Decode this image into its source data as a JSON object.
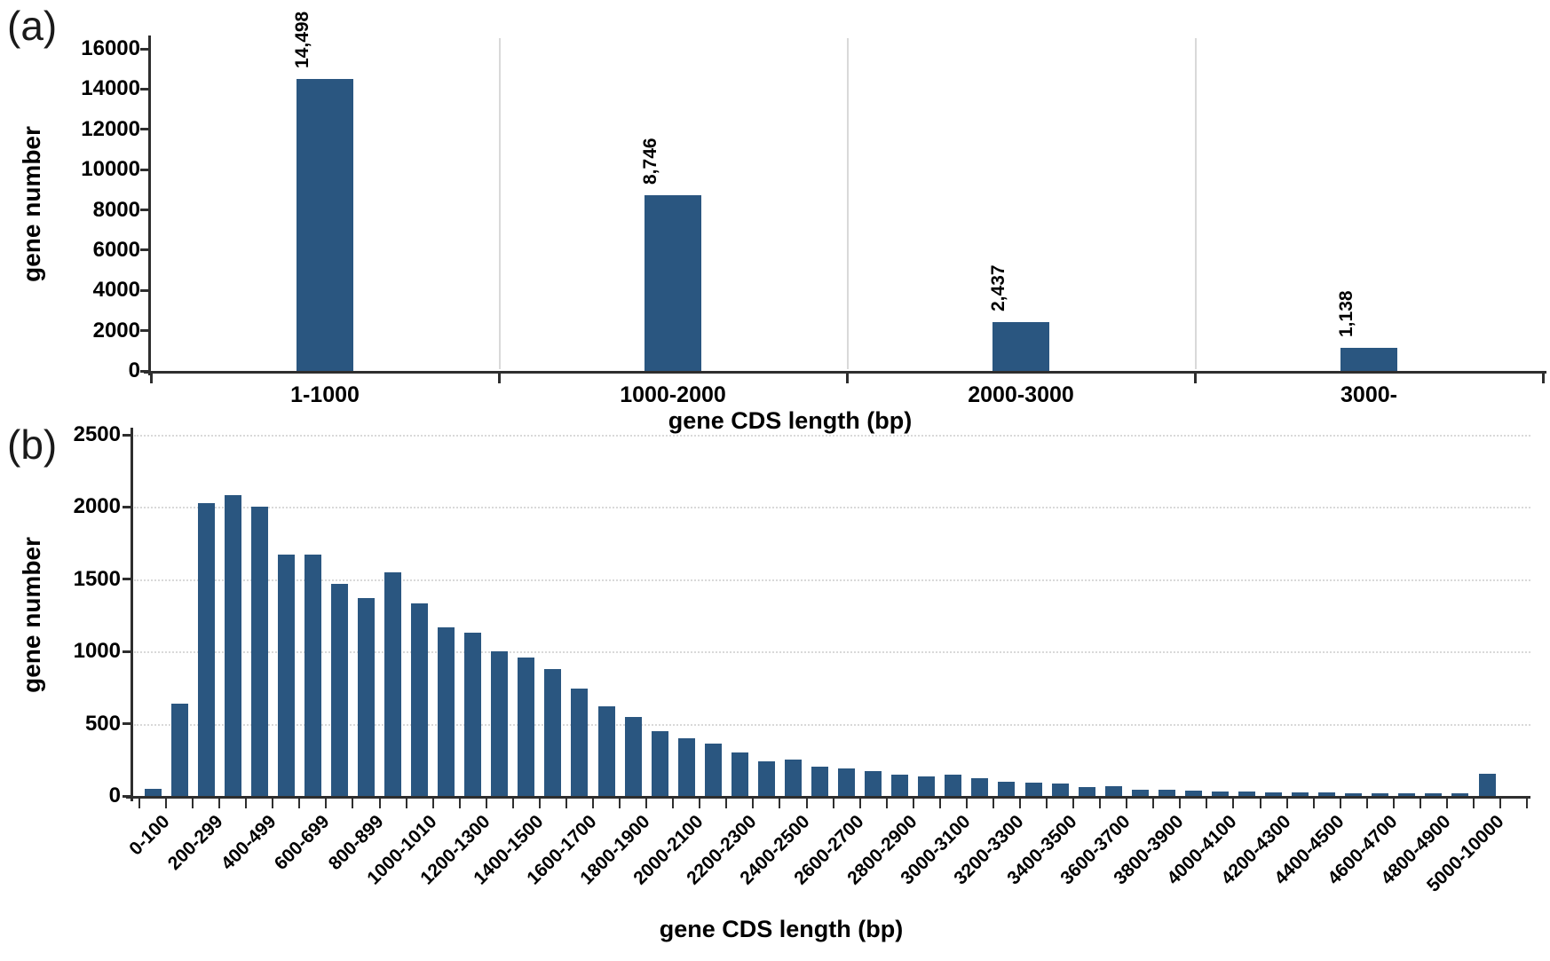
{
  "figure": {
    "background": "#ffffff",
    "bar_color": "#2a5680",
    "axis_color": "#2e2e2e",
    "grid_color": "#d9d9d9",
    "text_color": "#000000"
  },
  "chart_data": [
    {
      "panel": "(a)",
      "type": "bar",
      "title": "",
      "xlabel": "gene CDS length (bp)",
      "ylabel": "gene number",
      "ylim": [
        0,
        16000
      ],
      "yticks": [
        0,
        2000,
        4000,
        6000,
        8000,
        10000,
        12000,
        14000,
        16000
      ],
      "categories": [
        "1-1000",
        "1000-2000",
        "2000-3000",
        "3000-"
      ],
      "values": [
        14498,
        8746,
        2437,
        1138
      ],
      "bar_labels": [
        "14,498",
        "8,746",
        "2,437",
        "1,138"
      ],
      "bar_label_rotation_deg": -90,
      "grid": "vertical category dividers",
      "legend": "none"
    },
    {
      "panel": "(b)",
      "type": "bar",
      "title": "",
      "xlabel": "gene CDS length (bp)",
      "ylabel": "gene number",
      "ylim": [
        0,
        2500
      ],
      "yticks": [
        0,
        500,
        1000,
        1500,
        2000,
        2500
      ],
      "tick_labels": [
        "0-100",
        "200-299",
        "400-499",
        "600-699",
        "800-899",
        "1000-1010",
        "1200-1300",
        "1400-1500",
        "1600-1700",
        "1800-1900",
        "2000-2100",
        "2200-2300",
        "2400-2500",
        "2600-2700",
        "2800-2900",
        "3000-3100",
        "3200-3300",
        "3400-3500",
        "3600-3700",
        "3800-3900",
        "4000-4100",
        "4200-4300",
        "4400-4500",
        "4600-4700",
        "4800-4900",
        "5000-10000"
      ],
      "tick_label_rotation_deg": -45,
      "labels_on_every_other_bar": true,
      "values": [
        50,
        640,
        2030,
        2085,
        2005,
        1670,
        1670,
        1470,
        1370,
        1550,
        1330,
        1170,
        1130,
        1000,
        960,
        880,
        745,
        620,
        545,
        450,
        400,
        360,
        300,
        240,
        250,
        200,
        190,
        170,
        150,
        135,
        150,
        125,
        100,
        90,
        85,
        60,
        65,
        45,
        40,
        35,
        32,
        28,
        25,
        22,
        22,
        20,
        20,
        20,
        18,
        18,
        155
      ],
      "grid": "horizontal",
      "legend": "none"
    }
  ]
}
